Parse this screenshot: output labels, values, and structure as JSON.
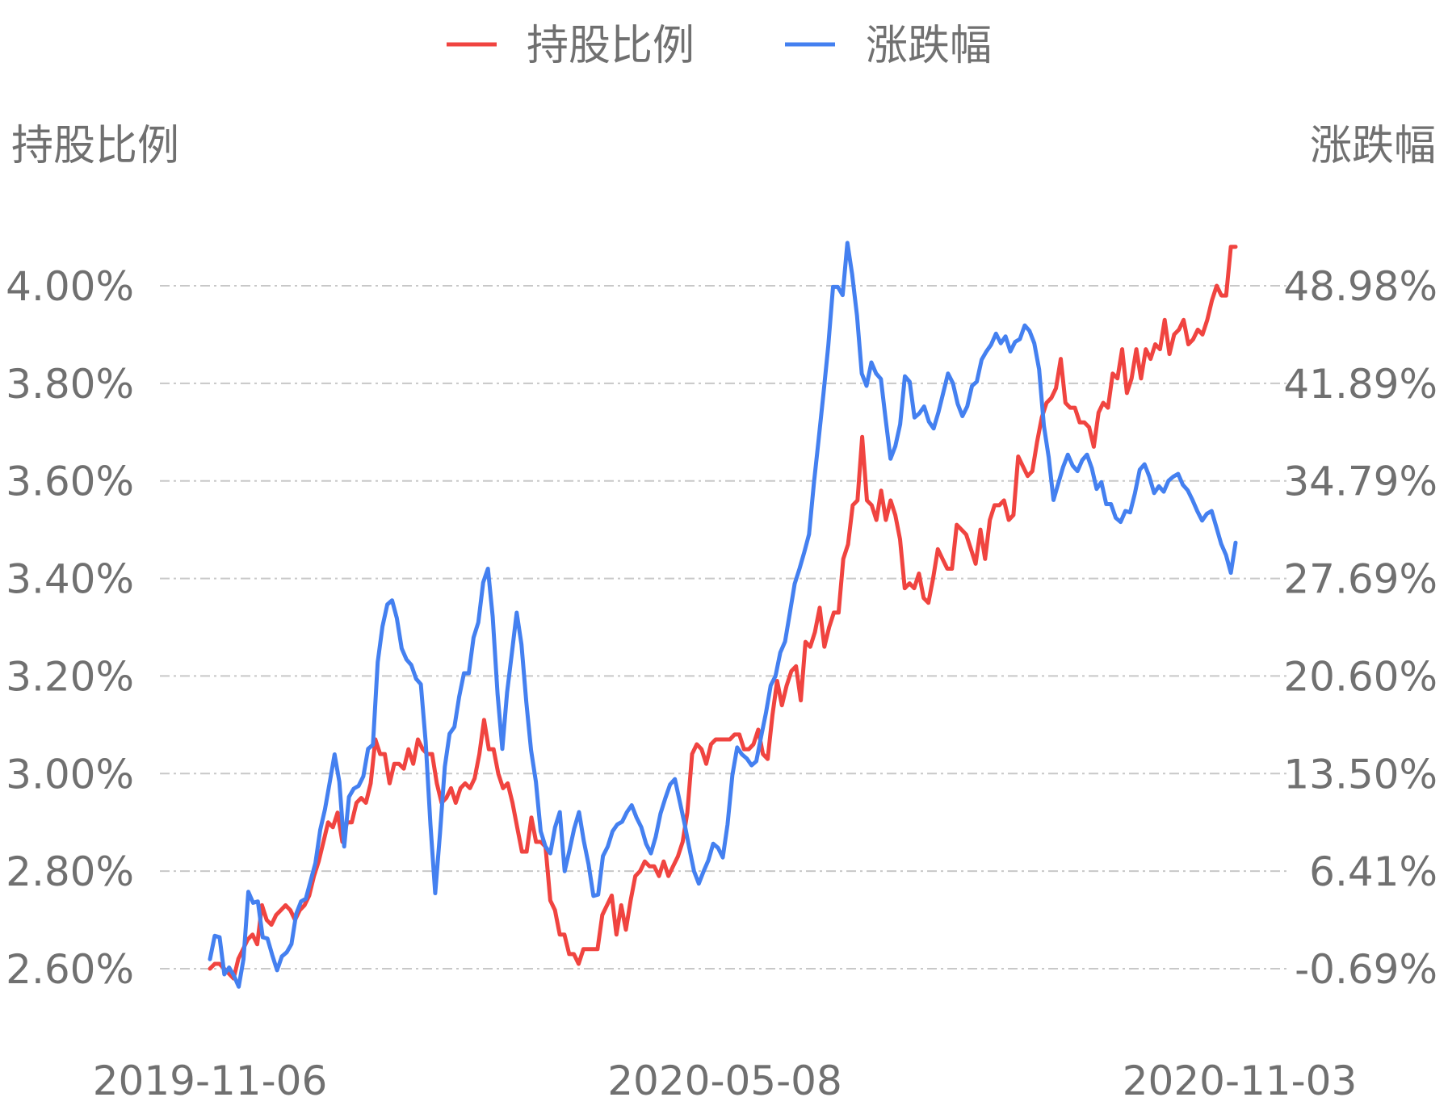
{
  "legend": [
    {
      "name": "持股比例",
      "color": "#f04440"
    },
    {
      "name": "涨跌幅",
      "color": "#4480f0"
    }
  ],
  "chart_data": {
    "type": "line",
    "left_axis": {
      "title": "持股比例",
      "ticks": [
        "2.60%",
        "2.80%",
        "3.00%",
        "3.20%",
        "3.40%",
        "3.60%",
        "3.80%",
        "4.00%"
      ],
      "range": [
        2.6,
        4.0
      ]
    },
    "right_axis": {
      "title": "涨跌幅",
      "ticks": [
        "-0.69%",
        "6.41%",
        "13.50%",
        "20.60%",
        "27.69%",
        "34.79%",
        "41.89%",
        "48.98%"
      ],
      "range": [
        -0.69,
        48.98
      ]
    },
    "x_axis": {
      "ticks": [
        "2019-11-06",
        "2020-05-08",
        "2020-11-03"
      ],
      "range": [
        "2019-11-06",
        "2020-11-03"
      ]
    },
    "grid": true,
    "legend_position": "top-center",
    "series": [
      {
        "name": "持股比例",
        "axis": "left",
        "color": "#f04440",
        "values": [
          2.6,
          2.61,
          2.61,
          2.6,
          2.59,
          2.58,
          2.62,
          2.64,
          2.66,
          2.67,
          2.65,
          2.73,
          2.7,
          2.69,
          2.71,
          2.72,
          2.73,
          2.72,
          2.7,
          2.72,
          2.73,
          2.75,
          2.79,
          2.82,
          2.86,
          2.9,
          2.89,
          2.92,
          2.86,
          2.9,
          2.9,
          2.94,
          2.95,
          2.94,
          2.98,
          3.07,
          3.04,
          3.04,
          2.98,
          3.02,
          3.02,
          3.01,
          3.05,
          3.02,
          3.07,
          3.05,
          3.04,
          3.04,
          2.98,
          2.94,
          2.95,
          2.97,
          2.94,
          2.97,
          2.98,
          2.97,
          2.99,
          3.04,
          3.11,
          3.05,
          3.05,
          3.0,
          2.97,
          2.98,
          2.94,
          2.89,
          2.84,
          2.84,
          2.91,
          2.86,
          2.86,
          2.85,
          2.74,
          2.72,
          2.67,
          2.67,
          2.63,
          2.63,
          2.61,
          2.64,
          2.64,
          2.64,
          2.64,
          2.71,
          2.73,
          2.75,
          2.67,
          2.73,
          2.68,
          2.74,
          2.79,
          2.8,
          2.82,
          2.81,
          2.81,
          2.79,
          2.82,
          2.79,
          2.81,
          2.83,
          2.86,
          2.92,
          3.04,
          3.06,
          3.05,
          3.02,
          3.06,
          3.07,
          3.07,
          3.07,
          3.07,
          3.08,
          3.08,
          3.05,
          3.05,
          3.06,
          3.09,
          3.04,
          3.03,
          3.12,
          3.19,
          3.14,
          3.18,
          3.21,
          3.22,
          3.15,
          3.27,
          3.26,
          3.29,
          3.34,
          3.26,
          3.3,
          3.33,
          3.33,
          3.44,
          3.47,
          3.55,
          3.56,
          3.69,
          3.56,
          3.55,
          3.52,
          3.58,
          3.52,
          3.56,
          3.53,
          3.48,
          3.38,
          3.39,
          3.38,
          3.41,
          3.36,
          3.35,
          3.4,
          3.46,
          3.44,
          3.42,
          3.42,
          3.51,
          3.5,
          3.49,
          3.46,
          3.43,
          3.5,
          3.44,
          3.52,
          3.55,
          3.55,
          3.56,
          3.52,
          3.53,
          3.65,
          3.63,
          3.61,
          3.62,
          3.68,
          3.73,
          3.76,
          3.77,
          3.79,
          3.85,
          3.76,
          3.75,
          3.75,
          3.72,
          3.72,
          3.71,
          3.67,
          3.74,
          3.76,
          3.75,
          3.82,
          3.81,
          3.87,
          3.78,
          3.81,
          3.87,
          3.81,
          3.87,
          3.85,
          3.88,
          3.87,
          3.93,
          3.86,
          3.9,
          3.91,
          3.93,
          3.88,
          3.89,
          3.91,
          3.9,
          3.93,
          3.97,
          4.0,
          3.98,
          3.98,
          4.08,
          4.08
        ]
      },
      {
        "name": "涨跌幅",
        "axis": "right",
        "color": "#4480f0",
        "values": [
          0.0,
          1.7,
          1.6,
          -1.1,
          -0.6,
          -1.2,
          -2.0,
          0.0,
          4.9,
          4.1,
          4.2,
          1.6,
          1.5,
          0.3,
          -0.8,
          0.2,
          0.5,
          1.1,
          3.3,
          4.2,
          4.4,
          5.7,
          7.0,
          9.4,
          10.9,
          12.9,
          14.9,
          12.9,
          8.2,
          11.8,
          12.4,
          12.6,
          13.3,
          15.3,
          15.6,
          21.6,
          24.2,
          25.8,
          26.1,
          24.8,
          22.6,
          21.8,
          21.4,
          20.4,
          20.0,
          15.8,
          9.8,
          4.8,
          9.2,
          14.0,
          16.4,
          16.9,
          19.1,
          20.8,
          20.8,
          23.4,
          24.5,
          27.4,
          28.4,
          24.9,
          19.3,
          15.3,
          19.4,
          22.3,
          25.2,
          22.9,
          18.7,
          15.2,
          12.9,
          9.3,
          8.2,
          7.7,
          9.6,
          10.7,
          6.4,
          7.9,
          9.5,
          10.7,
          8.6,
          6.9,
          4.6,
          4.7,
          7.5,
          8.2,
          9.3,
          9.8,
          10.0,
          10.7,
          11.2,
          10.3,
          9.6,
          8.4,
          7.7,
          8.9,
          10.6,
          11.7,
          12.7,
          13.1,
          11.5,
          9.9,
          8.1,
          6.4,
          5.5,
          6.4,
          7.2,
          8.4,
          8.1,
          7.4,
          9.8,
          13.4,
          15.4,
          14.9,
          14.6,
          14.1,
          14.4,
          16.2,
          17.9,
          19.9,
          20.6,
          22.3,
          23.1,
          25.2,
          27.3,
          28.4,
          29.6,
          30.9,
          34.6,
          37.8,
          41.1,
          44.6,
          48.9,
          48.9,
          48.3,
          52.1,
          49.8,
          46.8,
          42.6,
          41.7,
          43.4,
          42.6,
          42.2,
          39.2,
          36.4,
          37.3,
          38.9,
          42.4,
          42.0,
          39.4,
          39.7,
          40.2,
          39.1,
          38.6,
          39.8,
          41.2,
          42.6,
          41.9,
          40.4,
          39.5,
          40.2,
          41.7,
          42.0,
          43.6,
          44.2,
          44.7,
          45.5,
          44.8,
          45.3,
          44.2,
          44.9,
          45.1,
          46.1,
          45.7,
          44.8,
          42.9,
          38.8,
          36.5,
          33.4,
          34.6,
          35.8,
          36.7,
          35.9,
          35.5,
          36.3,
          36.7,
          35.7,
          34.2,
          34.7,
          33.1,
          33.1,
          32.1,
          31.8,
          32.6,
          32.5,
          33.9,
          35.6,
          36.0,
          35.1,
          33.9,
          34.4,
          34.0,
          34.8,
          35.1,
          35.3,
          34.5,
          34.1,
          33.4,
          32.6,
          31.9,
          32.4,
          32.6,
          31.4,
          30.2,
          29.4,
          28.1,
          30.3
        ]
      }
    ]
  }
}
